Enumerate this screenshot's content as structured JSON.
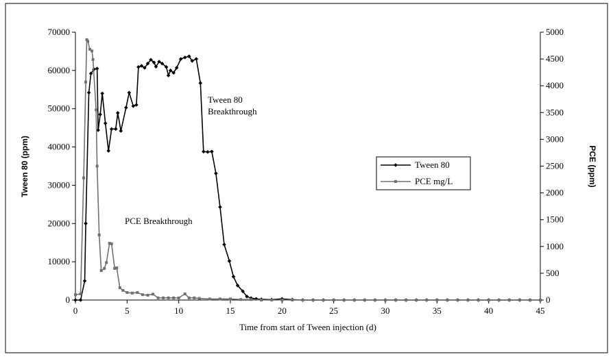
{
  "chart_data": {
    "type": "line",
    "xlabel": "Time from start of Tween injection (d)",
    "ylabel": "Tween 80 (ppm)",
    "y2label": "PCE (ppm)",
    "xlim": [
      0,
      45
    ],
    "xticks": [
      0,
      5,
      10,
      15,
      20,
      25,
      30,
      35,
      40,
      45
    ],
    "ylim": [
      0,
      70000
    ],
    "yticks": [
      0,
      10000,
      20000,
      30000,
      40000,
      50000,
      60000,
      70000
    ],
    "y2lim": [
      0,
      5000
    ],
    "y2ticks": [
      0,
      500,
      1000,
      1500,
      2000,
      2500,
      3000,
      3500,
      4000,
      4500,
      5000
    ],
    "legend": "right",
    "annotations": [
      {
        "lines": [
          "Tween 80",
          "Breakthrough"
        ]
      },
      {
        "lines": [
          "PCE Breakthrough"
        ]
      }
    ],
    "series": [
      {
        "name": "Tween 80",
        "color": "#000000",
        "marker": "diamond",
        "axis": "y",
        "x": [
          0,
          0.5,
          0.9,
          1.0,
          1.3,
          1.5,
          1.8,
          2.1,
          2.2,
          2.4,
          2.6,
          2.9,
          3.2,
          3.5,
          3.9,
          4.1,
          4.4,
          4.9,
          5.2,
          5.6,
          5.9,
          6.1,
          6.4,
          6.7,
          7.0,
          7.3,
          7.6,
          7.8,
          8.1,
          8.4,
          8.8,
          9.0,
          9.2,
          9.5,
          9.8,
          10.2,
          10.6,
          11.0,
          11.3,
          11.7,
          12.1,
          12.4,
          12.8,
          13.2,
          13.6,
          14.0,
          14.4,
          14.9,
          15.3,
          15.7,
          16.2,
          16.6,
          17.0,
          17.5,
          18,
          19,
          20,
          21,
          22,
          23,
          24,
          25,
          26,
          27,
          28,
          29,
          30,
          31,
          32,
          33,
          34,
          35,
          36,
          37,
          38,
          39,
          40,
          41,
          42,
          43,
          44,
          45
        ],
        "values": [
          0,
          0,
          5000,
          20000,
          54200,
          59200,
          60300,
          60500,
          44400,
          48500,
          54000,
          46200,
          39000,
          44700,
          44700,
          48900,
          44200,
          50300,
          54200,
          50700,
          51000,
          60900,
          61200,
          60700,
          61800,
          62800,
          62100,
          61000,
          62300,
          61800,
          60900,
          58700,
          60000,
          59400,
          60700,
          63000,
          63400,
          63700,
          62500,
          63000,
          56700,
          38800,
          38700,
          38800,
          33100,
          24300,
          14500,
          10200,
          6100,
          3800,
          2300,
          900,
          500,
          300,
          200,
          100,
          300,
          100,
          0,
          0,
          0,
          0,
          0,
          0,
          0,
          0,
          0,
          0,
          0,
          0,
          0,
          0,
          0,
          0,
          0,
          0,
          0,
          0,
          0,
          0,
          0,
          0
        ]
      },
      {
        "name": "PCE mg/L",
        "color": "#707070",
        "marker": "square",
        "axis": "y2",
        "x": [
          0,
          0.5,
          0.8,
          1.0,
          1.1,
          1.2,
          1.4,
          1.6,
          1.7,
          2.0,
          2.1,
          2.3,
          2.5,
          2.8,
          3.0,
          3.3,
          3.5,
          3.8,
          4.0,
          4.3,
          4.6,
          5.0,
          5.5,
          6.0,
          6.5,
          7.0,
          7.5,
          8.0,
          8.5,
          9.0,
          9.5,
          10.0,
          10.6,
          11.0,
          11.5,
          12,
          13,
          14,
          15,
          16,
          17,
          18,
          19,
          20,
          21,
          22,
          23,
          24,
          25,
          26,
          27,
          28,
          29,
          30,
          31,
          32,
          33,
          34,
          35,
          36,
          37,
          38,
          39,
          40,
          41,
          42,
          43,
          44,
          45
        ],
        "values": [
          100,
          115,
          2280,
          4070,
          4860,
          4830,
          4680,
          4650,
          4490,
          3550,
          2500,
          1215,
          550,
          590,
          700,
          1060,
          1050,
          590,
          600,
          230,
          180,
          140,
          130,
          140,
          100,
          90,
          110,
          40,
          40,
          40,
          40,
          40,
          115,
          40,
          40,
          30,
          20,
          20,
          20,
          10,
          10,
          0,
          0,
          0,
          0,
          0,
          0,
          0,
          0,
          0,
          0,
          0,
          0,
          0,
          0,
          0,
          0,
          0,
          0,
          0,
          0,
          0,
          0,
          0,
          0,
          0,
          0,
          0,
          0
        ]
      }
    ]
  }
}
